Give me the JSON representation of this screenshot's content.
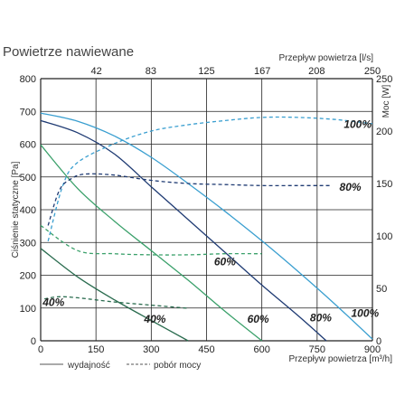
{
  "chart_data": {
    "type": "line",
    "title": "Powietrze nawiewane",
    "xlabel": "Przepływ powietrza [m³/h]",
    "x2label": "Przepływ powietrza [l/s]",
    "ylabel": "Ciśnienie statyczne [Pa]",
    "y2label": "Moc [W]",
    "xlim": [
      0,
      900
    ],
    "ylim": [
      0,
      800
    ],
    "y2lim": [
      0,
      250
    ],
    "grid": true,
    "x_ticks": [
      "0",
      "150",
      "300",
      "450",
      "600",
      "750",
      "900"
    ],
    "y_ticks": [
      "0",
      "100",
      "200",
      "300",
      "400",
      "500",
      "600",
      "700",
      "800"
    ],
    "x2_ticks": [
      "42",
      "83",
      "125",
      "167",
      "208",
      "250"
    ],
    "y2_ticks": [
      "0",
      "50",
      "100",
      "150",
      "200",
      "250"
    ],
    "colors": {
      "grid": "#222222",
      "blue": "#3a9fd0",
      "dark_blue": "#1f3b73",
      "green": "#3aa06a",
      "dark_green": "#2a6c4f"
    },
    "legend": {
      "position": "bottom",
      "items": [
        {
          "label": "wydajność",
          "style": "solid",
          "color": "#555555"
        },
        {
          "label": "pobór mocy",
          "style": "dashed",
          "color": "#555555"
        }
      ]
    },
    "series": [
      {
        "label": "100%",
        "kind": "wydajność",
        "axis": "left",
        "color": "#3a9fd0",
        "x": [
          0,
          100,
          200,
          300,
          400,
          500,
          600,
          700,
          800,
          900
        ],
        "y": [
          695,
          670,
          625,
          560,
          480,
          395,
          305,
          210,
          110,
          5
        ]
      },
      {
        "label": "80%",
        "kind": "wydajność",
        "axis": "left",
        "color": "#1f3b73",
        "x": [
          0,
          100,
          200,
          300,
          400,
          500,
          600,
          700,
          775
        ],
        "y": [
          672,
          635,
          570,
          470,
          370,
          270,
          170,
          75,
          0
        ]
      },
      {
        "label": "60%",
        "kind": "wydajność",
        "axis": "left",
        "color": "#3aa06a",
        "x": [
          0,
          100,
          200,
          300,
          400,
          500,
          600
        ],
        "y": [
          598,
          465,
          365,
          275,
          185,
          90,
          0
        ]
      },
      {
        "label": "40%",
        "kind": "wydajność",
        "axis": "left",
        "color": "#2a6c4f",
        "x": [
          0,
          100,
          200,
          300,
          400
        ],
        "y": [
          282,
          195,
          125,
          62,
          0
        ]
      },
      {
        "label": "100%",
        "kind": "pobór mocy",
        "axis": "right",
        "color": "#3a9fd0",
        "x": [
          20,
          60,
          100,
          200,
          300,
          400,
          500,
          600,
          700,
          800,
          900
        ],
        "y": [
          95,
          148,
          170,
          188,
          200,
          206,
          210,
          213,
          213,
          211,
          207
        ]
      },
      {
        "label": "80%",
        "kind": "pobór mocy",
        "axis": "right",
        "color": "#1f3b73",
        "x": [
          20,
          50,
          80,
          120,
          200,
          300,
          400,
          500,
          600,
          700,
          790
        ],
        "y": [
          110,
          143,
          154,
          159,
          158,
          153,
          150,
          149,
          148,
          148,
          148
        ]
      },
      {
        "label": "60%",
        "kind": "pobór mocy",
        "axis": "right",
        "color": "#3aa06a",
        "x": [
          0,
          100,
          200,
          300,
          400,
          500,
          600
        ],
        "y": [
          110,
          86,
          83,
          82,
          82,
          83,
          83
        ]
      },
      {
        "label": "40%",
        "kind": "pobór mocy",
        "axis": "right",
        "color": "#2a6c4f",
        "x": [
          10,
          50,
          100,
          200,
          300,
          400
        ],
        "y": [
          40,
          42,
          41,
          37,
          34,
          31
        ]
      }
    ],
    "annotations": [
      "100%",
      "80%",
      "60%",
      "40%",
      "40%",
      "60%",
      "80%",
      "100%"
    ]
  }
}
